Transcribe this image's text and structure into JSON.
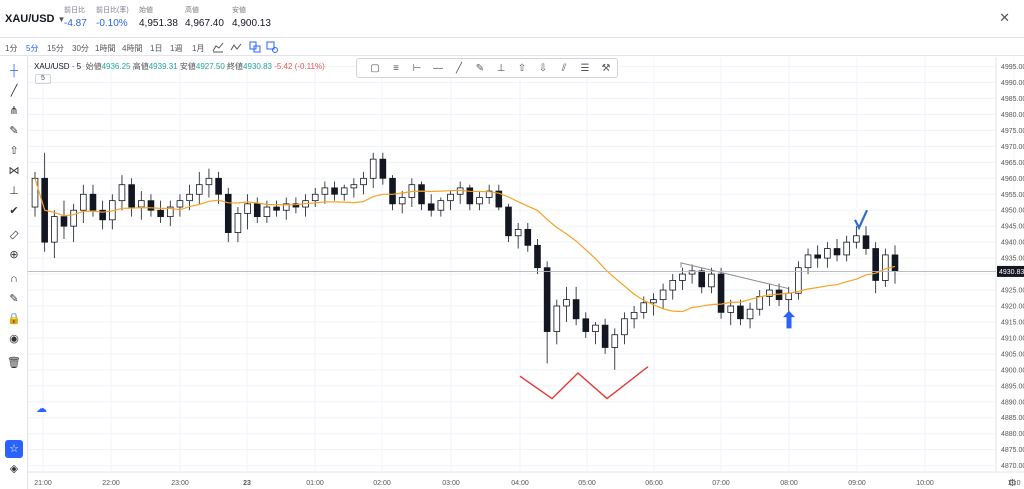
{
  "header": {
    "symbol": "XAU/USD",
    "stats": [
      {
        "label": "前日比",
        "value": "-4.87",
        "color": "#2962ff"
      },
      {
        "label": "前日比(率)",
        "value": "-0.10%",
        "color": "#2962ff"
      },
      {
        "label": "始値",
        "value": "4,951.38",
        "color": "#131722"
      },
      {
        "label": "高値",
        "value": "4,967.40",
        "color": "#131722"
      },
      {
        "label": "安値",
        "value": "4,900.13",
        "color": "#131722"
      }
    ]
  },
  "timeframes": [
    "1分",
    "5分",
    "15分",
    "30分",
    "1時間",
    "4時間",
    "1日",
    "1週",
    "1月"
  ],
  "active_timeframe": "5分",
  "legend": {
    "symbol": "XAU/USD · 5",
    "open_label": "始値",
    "open": "4936.25",
    "high_label": "高値",
    "high": "4939.31",
    "low_label": "安値",
    "low": "4927.50",
    "close_label": "終値",
    "close": "4930.83",
    "change": "-5.42 (-0.11%)",
    "ma_badge": "5"
  },
  "left_tools": [
    "crosshair-icon",
    "trend-line-icon",
    "pitchfork-icon",
    "brush-icon",
    "arrow-up-icon",
    "pattern-icon",
    "text-icon",
    "checkmark-icon",
    "ruler-icon",
    "zoom-in-icon",
    "magnet-icon",
    "lock-pencil-icon",
    "lock-icon",
    "eye-icon",
    "trash-icon",
    "star-icon",
    "layers-icon"
  ],
  "draw_tools": [
    "rectangle-icon",
    "fib-icon",
    "horizontal-ray-icon",
    "horizontal-line-icon",
    "trend-line-icon",
    "brush-icon",
    "text-icon",
    "arrow-up-icon",
    "arrow-down-icon",
    "parallel-channel-icon",
    "horizontal-channel-icon",
    "measure-icon"
  ],
  "chart_data": {
    "type": "candlestick",
    "y_ticks": [
      4870,
      4875,
      4880,
      4885,
      4890,
      4895,
      4900,
      4905,
      4910,
      4915,
      4920,
      4925,
      4930,
      4935,
      4940,
      4945,
      4950,
      4955,
      4960,
      4965,
      4970,
      4975,
      4980,
      4985,
      4990,
      4995
    ],
    "ylim": [
      4868,
      4998
    ],
    "x_ticks": [
      "21:00",
      "22:00",
      "23:00",
      "23",
      "01:00",
      "02:00",
      "03:00",
      "04:00",
      "05:00",
      "06:00",
      "07:00",
      "08:00",
      "09:00",
      "10:00",
      "11:0"
    ],
    "current_price": "4930.83",
    "candles": [
      [
        4951,
        4962,
        4948,
        4960
      ],
      [
        4960,
        4968,
        4937,
        4940
      ],
      [
        4940,
        4950,
        4935,
        4948
      ],
      [
        4948,
        4953,
        4941,
        4945
      ],
      [
        4945,
        4952,
        4940,
        4950
      ],
      [
        4950,
        4958,
        4946,
        4955
      ],
      [
        4955,
        4958,
        4948,
        4950
      ],
      [
        4950,
        4953,
        4944,
        4947
      ],
      [
        4947,
        4955,
        4944,
        4953
      ],
      [
        4953,
        4961,
        4950,
        4958
      ],
      [
        4958,
        4960,
        4948,
        4951
      ],
      [
        4951,
        4956,
        4947,
        4953
      ],
      [
        4953,
        4955,
        4948,
        4950
      ],
      [
        4950,
        4953,
        4946,
        4948
      ],
      [
        4948,
        4953,
        4945,
        4951
      ],
      [
        4951,
        4955,
        4948,
        4953
      ],
      [
        4953,
        4958,
        4950,
        4955
      ],
      [
        4955,
        4962,
        4952,
        4958
      ],
      [
        4958,
        4963,
        4954,
        4960
      ],
      [
        4960,
        4962,
        4952,
        4955
      ],
      [
        4955,
        4957,
        4940,
        4943
      ],
      [
        4943,
        4951,
        4940,
        4949
      ],
      [
        4949,
        4955,
        4944,
        4952
      ],
      [
        4952,
        4954,
        4946,
        4948
      ],
      [
        4948,
        4953,
        4946,
        4951
      ],
      [
        4951,
        4953,
        4948,
        4950
      ],
      [
        4950,
        4954,
        4947,
        4952
      ],
      [
        4952,
        4954,
        4949,
        4951
      ],
      [
        4951,
        4955,
        4948,
        4953
      ],
      [
        4953,
        4957,
        4951,
        4955
      ],
      [
        4955,
        4959,
        4952,
        4957
      ],
      [
        4957,
        4959,
        4953,
        4955
      ],
      [
        4955,
        4958,
        4953,
        4957
      ],
      [
        4957,
        4960,
        4954,
        4958
      ],
      [
        4958,
        4962,
        4955,
        4960
      ],
      [
        4960,
        4968,
        4957,
        4966
      ],
      [
        4966,
        4968,
        4958,
        4960
      ],
      [
        4960,
        4961,
        4950,
        4952
      ],
      [
        4952,
        4956,
        4949,
        4954
      ],
      [
        4954,
        4960,
        4951,
        4958
      ],
      [
        4958,
        4959,
        4950,
        4952
      ],
      [
        4952,
        4955,
        4948,
        4950
      ],
      [
        4950,
        4954,
        4948,
        4953
      ],
      [
        4953,
        4956,
        4950,
        4955
      ],
      [
        4955,
        4959,
        4952,
        4957
      ],
      [
        4957,
        4958,
        4950,
        4952
      ],
      [
        4952,
        4956,
        4950,
        4954
      ],
      [
        4954,
        4958,
        4952,
        4956
      ],
      [
        4956,
        4958,
        4950,
        4951
      ],
      [
        4951,
        4952,
        4940,
        4942
      ],
      [
        4942,
        4946,
        4938,
        4944
      ],
      [
        4944,
        4946,
        4937,
        4939
      ],
      [
        4939,
        4941,
        4930,
        4932
      ],
      [
        4932,
        4934,
        4902,
        4912
      ],
      [
        4912,
        4922,
        4908,
        4920
      ],
      [
        4920,
        4926,
        4915,
        4922
      ],
      [
        4922,
        4926,
        4914,
        4916
      ],
      [
        4916,
        4918,
        4910,
        4912
      ],
      [
        4912,
        4915,
        4908,
        4914
      ],
      [
        4914,
        4916,
        4905,
        4907
      ],
      [
        4907,
        4913,
        4900,
        4911
      ],
      [
        4911,
        4918,
        4908,
        4916
      ],
      [
        4916,
        4920,
        4913,
        4918
      ],
      [
        4918,
        4923,
        4916,
        4921
      ],
      [
        4921,
        4924,
        4917,
        4922
      ],
      [
        4922,
        4927,
        4919,
        4925
      ],
      [
        4925,
        4930,
        4922,
        4928
      ],
      [
        4928,
        4932,
        4925,
        4930
      ],
      [
        4930,
        4933,
        4927,
        4931
      ],
      [
        4931,
        4932,
        4924,
        4926
      ],
      [
        4926,
        4932,
        4924,
        4930
      ],
      [
        4930,
        4932,
        4916,
        4918
      ],
      [
        4918,
        4922,
        4914,
        4920
      ],
      [
        4920,
        4922,
        4914,
        4916
      ],
      [
        4916,
        4921,
        4913,
        4919
      ],
      [
        4919,
        4925,
        4917,
        4923
      ],
      [
        4923,
        4927,
        4920,
        4925
      ],
      [
        4925,
        4927,
        4920,
        4922
      ],
      [
        4922,
        4926,
        4918,
        4924
      ],
      [
        4924,
        4934,
        4922,
        4932
      ],
      [
        4932,
        4938,
        4930,
        4936
      ],
      [
        4936,
        4939,
        4932,
        4935
      ],
      [
        4935,
        4940,
        4932,
        4938
      ],
      [
        4938,
        4941,
        4934,
        4936
      ],
      [
        4936,
        4942,
        4934,
        4940
      ],
      [
        4940,
        4945,
        4938,
        4942
      ],
      [
        4942,
        4945,
        4936,
        4938
      ],
      [
        4938,
        4940,
        4924,
        4928
      ],
      [
        4928,
        4938,
        4926,
        4936
      ],
      [
        4936,
        4939,
        4927,
        4931
      ]
    ],
    "ma_period": 5,
    "annotations": [
      "double-bottom-zigzag",
      "resistance-trendline",
      "blue-up-arrow",
      "blue-checkmark"
    ]
  }
}
